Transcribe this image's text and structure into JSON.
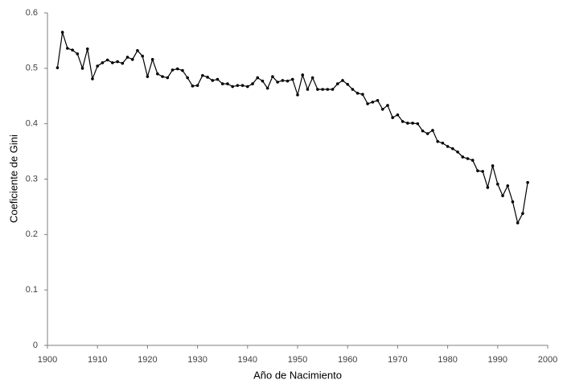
{
  "chart_data": {
    "type": "line",
    "x_label": "Año de Nacimiento",
    "y_label": "Coeficiente de Gini",
    "x": [
      1902,
      1903,
      1904,
      1905,
      1906,
      1907,
      1908,
      1909,
      1910,
      1911,
      1912,
      1913,
      1914,
      1915,
      1916,
      1917,
      1918,
      1919,
      1920,
      1921,
      1922,
      1923,
      1924,
      1925,
      1926,
      1927,
      1928,
      1929,
      1930,
      1931,
      1932,
      1933,
      1934,
      1935,
      1936,
      1937,
      1938,
      1939,
      1940,
      1941,
      1942,
      1943,
      1944,
      1945,
      1946,
      1947,
      1948,
      1949,
      1950,
      1951,
      1952,
      1953,
      1954,
      1955,
      1956,
      1957,
      1958,
      1959,
      1960,
      1961,
      1962,
      1963,
      1964,
      1965,
      1966,
      1967,
      1968,
      1969,
      1970,
      1971,
      1972,
      1973,
      1974,
      1975,
      1976,
      1977,
      1978,
      1979,
      1980,
      1981,
      1982,
      1983,
      1984,
      1985,
      1986,
      1987,
      1988,
      1989,
      1990,
      1991,
      1992,
      1993,
      1994,
      1995,
      1996
    ],
    "series": [
      {
        "name": "Coeficiente de Gini",
        "color": "#000000",
        "values": [
          0.501,
          0.565,
          0.536,
          0.533,
          0.526,
          0.5,
          0.535,
          0.481,
          0.504,
          0.51,
          0.515,
          0.51,
          0.512,
          0.509,
          0.52,
          0.516,
          0.532,
          0.522,
          0.485,
          0.516,
          0.49,
          0.485,
          0.483,
          0.497,
          0.499,
          0.496,
          0.483,
          0.468,
          0.469,
          0.487,
          0.484,
          0.478,
          0.48,
          0.472,
          0.472,
          0.467,
          0.469,
          0.469,
          0.467,
          0.472,
          0.483,
          0.477,
          0.464,
          0.485,
          0.475,
          0.478,
          0.477,
          0.48,
          0.452,
          0.488,
          0.462,
          0.483,
          0.462,
          0.462,
          0.462,
          0.462,
          0.472,
          0.478,
          0.471,
          0.462,
          0.455,
          0.453,
          0.436,
          0.439,
          0.442,
          0.426,
          0.433,
          0.411,
          0.416,
          0.404,
          0.401,
          0.401,
          0.4,
          0.387,
          0.382,
          0.388,
          0.368,
          0.365,
          0.359,
          0.355,
          0.349,
          0.34,
          0.337,
          0.334,
          0.315,
          0.314,
          0.285,
          0.324,
          0.291,
          0.27,
          0.288,
          0.259,
          0.221,
          0.238,
          0.294
        ]
      }
    ],
    "xlim": [
      1900,
      2000
    ],
    "xticks": [
      1900,
      1910,
      1920,
      1930,
      1940,
      1950,
      1960,
      1970,
      1980,
      1990,
      2000
    ],
    "ylim": [
      0,
      0.6
    ],
    "yticks": [
      0,
      0.1,
      0.2,
      0.3,
      0.4,
      0.5,
      0.6
    ],
    "grid": false
  }
}
